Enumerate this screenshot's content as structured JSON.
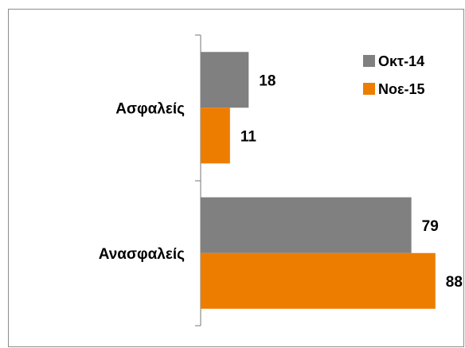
{
  "chart_data": {
    "type": "bar",
    "orientation": "horizontal",
    "title": "",
    "xlabel": "",
    "ylabel": "",
    "categories": [
      "Ασφαλείς",
      "Ανασφαλείς"
    ],
    "series": [
      {
        "name": "Οκτ-14",
        "color": "#808080",
        "values": [
          18,
          79
        ]
      },
      {
        "name": "Νοε-15",
        "color": "#ed7d00",
        "values": [
          11,
          88
        ]
      }
    ],
    "xlim": [
      0,
      100
    ],
    "grid": false,
    "legend": "top-right",
    "data_labels": true
  }
}
